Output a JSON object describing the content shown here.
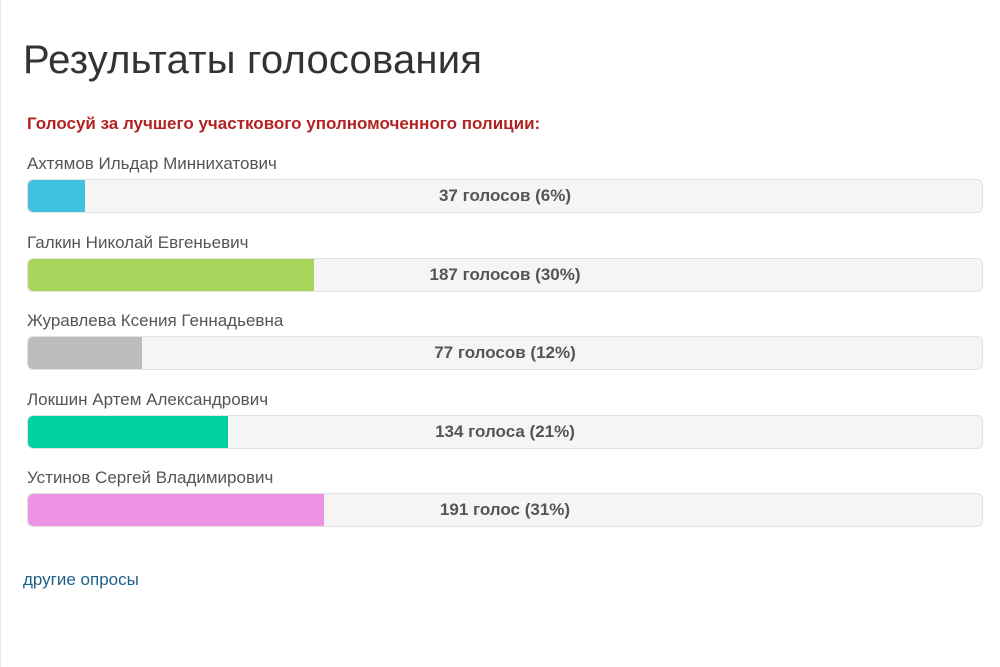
{
  "page": {
    "title": "Результаты голосования",
    "question": "Голосуй за лучшего участкового уполномоченного полиции:",
    "other_polls_link": "другие опросы"
  },
  "results": [
    {
      "name": "Ахтямов Ильдар Миннихатович",
      "votes": 37,
      "percent": 6,
      "label": "37 голосов (6%)",
      "color": "#41c1e0"
    },
    {
      "name": "Галкин Николай Евгеньевич",
      "votes": 187,
      "percent": 30,
      "label": "187 голосов (30%)",
      "color": "#a9d55c"
    },
    {
      "name": "Журавлева Ксения Геннадьевна",
      "votes": 77,
      "percent": 12,
      "label": "77 голосов (12%)",
      "color": "#bdbdbd"
    },
    {
      "name": "Локшин Артем Александрович",
      "votes": 134,
      "percent": 21,
      "label": "134 голоса (21%)",
      "color": "#00d19f"
    },
    {
      "name": "Устинов Сергей Владимирович",
      "votes": 191,
      "percent": 31,
      "label": "191 голос (31%)",
      "color": "#ef92e6"
    }
  ]
}
